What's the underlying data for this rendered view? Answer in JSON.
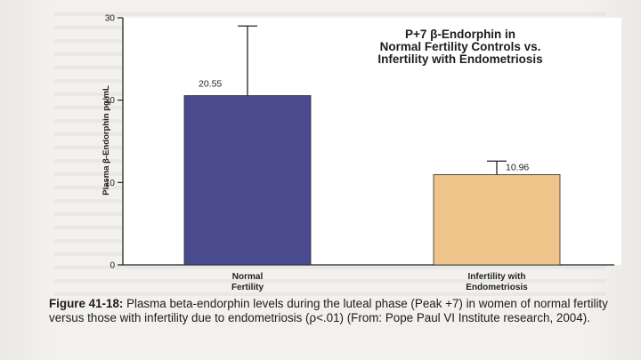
{
  "chart_data": {
    "type": "bar",
    "title_lines": [
      "P+7 β-Endorphin in",
      "Normal Fertility Controls vs.",
      "Infertility with Endometriosis"
    ],
    "ylabel": "Plasma β-Endorphin pg/mL",
    "xlabel": "",
    "ylim": [
      0,
      30
    ],
    "yticks": [
      0,
      10,
      20,
      30
    ],
    "categories": [
      {
        "lines": [
          "Normal",
          "Fertility"
        ]
      },
      {
        "lines": [
          "Infertility with",
          "Endometriosis"
        ]
      }
    ],
    "values": [
      20.55,
      10.96
    ],
    "value_labels": [
      "20.55",
      "10.96"
    ],
    "error_upper": [
      29.0,
      12.6
    ],
    "bar_colors": [
      "#4a4a8e",
      "#eec48a"
    ],
    "grid": false
  },
  "caption": {
    "figure_label": "Figure 41-18:",
    "text": " Plasma beta-endorphin levels during the luteal phase (Peak +7) in women of normal fertility versus those with infertility due to endometriosis (ρ<.01) (From: Pope Paul VI Institute research, 2004)."
  }
}
